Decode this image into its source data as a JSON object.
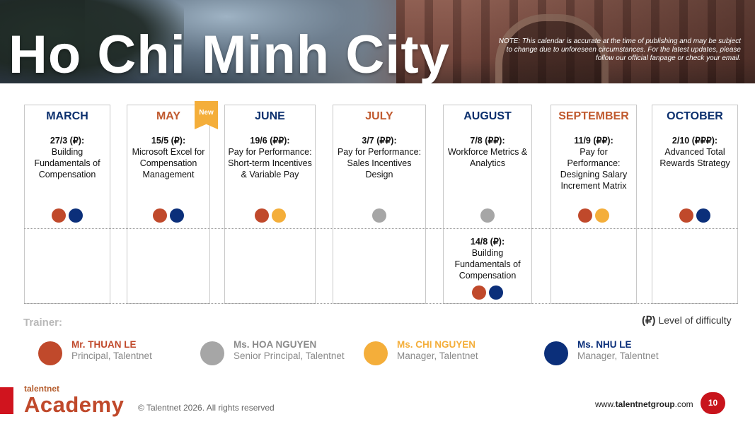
{
  "banner": {
    "title": "Ho Chi Minh City",
    "note": "NOTE: This calendar is accurate at the time of publishing and may be subject to change due to unforeseen circumstances. For the latest updates, please follow our official fanpage or check your email."
  },
  "new_badge": "New",
  "months": [
    {
      "name": "MARCH",
      "date": "27/3 (₽):",
      "title": "Building Fundamentals of Compensation"
    },
    {
      "name": "MAY",
      "date": "15/5 (₽):",
      "title": "Microsoft Excel for Compensation Management"
    },
    {
      "name": "JUNE",
      "date": "19/6 (₽₽):",
      "title": "Pay for Performance: Short-term Incentives & Variable Pay"
    },
    {
      "name": "JULY",
      "date": "3/7 (₽₽):",
      "title": "Pay for Performance: Sales Incentives Design"
    },
    {
      "name": "AUGUST",
      "date": "7/8 (₽₽):",
      "title": "Workforce Metrics & Analytics",
      "second": {
        "date": "14/8 (₽):",
        "title": "Building Fundamentals of Compensation"
      }
    },
    {
      "name": "SEPTEMBER",
      "date": "11/9 (₽₽):",
      "title": "Pay for Performance: Designing Salary Increment Matrix"
    },
    {
      "name": "OCTOBER",
      "date": "2/10 (₽₽₽):",
      "title": "Advanced Total Rewards Strategy"
    }
  ],
  "trainer_label": "Trainer:",
  "legend": {
    "symbol": "(₽)",
    "text": "Level of difficulty"
  },
  "trainers": [
    {
      "name": "Mr. THUAN LE",
      "role": "Principal, Talentnet",
      "color": "#c0492b"
    },
    {
      "name": "Ms. HOA NGUYEN",
      "role": "Senior Principal, Talentnet",
      "color": "#a6a6a6"
    },
    {
      "name": "Ms. CHI NGUYEN",
      "role": "Manager, Talentnet",
      "color": "#f4ae3a"
    },
    {
      "name": "Ms. NHU LE",
      "role": "Manager, Talentnet",
      "color": "#0b2f7a"
    }
  ],
  "footer": {
    "logo_small": "talentnet",
    "logo_big": "Academy",
    "copyright": "© Talentnet 2026. All rights reserved",
    "website_prefix": "www.",
    "website_bold": "talentnetgroup",
    "website_suffix": ".com",
    "page_number": "10"
  }
}
